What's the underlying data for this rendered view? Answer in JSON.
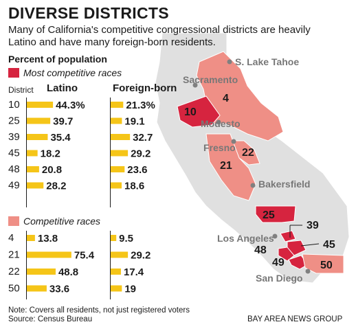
{
  "header": {
    "title": "DIVERSE DISTRICTS",
    "subtitle": "Many of California's competitive congressional districts are heavily Latino and have many foreign-born residents."
  },
  "legend": {
    "percent_label": "Percent of population",
    "most_competitive": "Most competitive races",
    "competitive": "Competitive races"
  },
  "columns": {
    "district": "District",
    "latino": "Latino",
    "foreign_born": "Foreign-born"
  },
  "colors": {
    "bar": "#f5c518",
    "most_competitive": "#d6243f",
    "competitive": "#ef8f86",
    "state": "#e0e0e0"
  },
  "chart_data": [
    {
      "type": "bar",
      "title": "Most competitive races",
      "categories": [
        "10",
        "25",
        "39",
        "45",
        "48",
        "49"
      ],
      "series": [
        {
          "name": "Latino",
          "values": [
            44.3,
            39.7,
            35.4,
            18.2,
            20.8,
            28.2
          ],
          "labels": [
            "44.3%",
            "39.7",
            "35.4",
            "18.2",
            "20.8",
            "28.2"
          ]
        },
        {
          "name": "Foreign-born",
          "values": [
            21.3,
            19.1,
            32.7,
            29.2,
            23.6,
            18.6
          ],
          "labels": [
            "21.3%",
            "19.1",
            "32.7",
            "29.2",
            "23.6",
            "18.6"
          ]
        }
      ]
    },
    {
      "type": "bar",
      "title": "Competitive races",
      "categories": [
        "4",
        "21",
        "22",
        "50"
      ],
      "series": [
        {
          "name": "Latino",
          "values": [
            13.8,
            75.4,
            48.8,
            33.6
          ],
          "labels": [
            "13.8",
            "75.4",
            "48.8",
            "33.6"
          ]
        },
        {
          "name": "Foreign-born",
          "values": [
            9.5,
            29.2,
            17.4,
            19
          ],
          "labels": [
            "9.5",
            "29.2",
            "17.4",
            "19"
          ]
        }
      ]
    }
  ],
  "map": {
    "cities": [
      "S. Lake Tahoe",
      "Sacramento",
      "Modesto",
      "Fresno",
      "Bakersfield",
      "Los Angeles",
      "San Diego"
    ],
    "district_labels": [
      "4",
      "10",
      "22",
      "21",
      "25",
      "39",
      "45",
      "48",
      "49",
      "50"
    ]
  },
  "footer": {
    "note": "Note: Covers all residents, not just registered voters",
    "source": "Source: Census Bureau",
    "credit": "BAY AREA NEWS GROUP"
  }
}
